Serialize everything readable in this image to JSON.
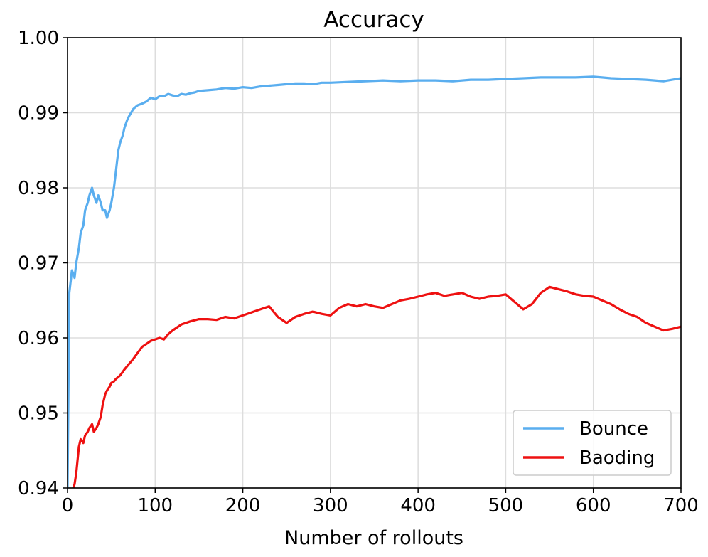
{
  "chart_data": {
    "type": "line",
    "title": "Accuracy",
    "xlabel": "Number of rollouts",
    "ylabel": "",
    "xlim": [
      0,
      700
    ],
    "ylim": [
      0.94,
      1.0
    ],
    "grid": true,
    "legend_position": "bottom-right",
    "x_ticks": [
      "0",
      "100",
      "200",
      "300",
      "400",
      "500",
      "600",
      "700"
    ],
    "y_ticks": [
      "0.94",
      "0.95",
      "0.96",
      "0.97",
      "0.98",
      "0.99",
      "1.00"
    ],
    "series": [
      {
        "name": "Bounce",
        "color": "#5aaeef",
        "x": [
          0,
          2,
          5,
          8,
          10,
          13,
          15,
          18,
          20,
          23,
          25,
          28,
          30,
          33,
          35,
          38,
          40,
          43,
          45,
          48,
          50,
          53,
          55,
          58,
          60,
          63,
          65,
          68,
          70,
          75,
          80,
          85,
          90,
          95,
          100,
          105,
          110,
          115,
          120,
          125,
          130,
          135,
          140,
          145,
          150,
          160,
          170,
          180,
          190,
          200,
          210,
          220,
          230,
          240,
          250,
          260,
          270,
          280,
          290,
          300,
          320,
          340,
          360,
          380,
          400,
          420,
          440,
          460,
          480,
          500,
          520,
          540,
          560,
          580,
          600,
          610,
          620,
          640,
          660,
          670,
          680,
          690,
          700
        ],
        "values": [
          0.94,
          0.966,
          0.969,
          0.968,
          0.97,
          0.972,
          0.974,
          0.975,
          0.977,
          0.978,
          0.979,
          0.98,
          0.979,
          0.978,
          0.979,
          0.978,
          0.977,
          0.977,
          0.976,
          0.977,
          0.978,
          0.98,
          0.982,
          0.985,
          0.986,
          0.987,
          0.988,
          0.989,
          0.9895,
          0.9905,
          0.991,
          0.9912,
          0.9915,
          0.992,
          0.9918,
          0.9922,
          0.9922,
          0.9925,
          0.9923,
          0.9922,
          0.9925,
          0.9924,
          0.9926,
          0.9927,
          0.9929,
          0.993,
          0.9931,
          0.9933,
          0.9932,
          0.9934,
          0.9933,
          0.9935,
          0.9936,
          0.9937,
          0.9938,
          0.9939,
          0.9939,
          0.9938,
          0.994,
          0.994,
          0.9941,
          0.9942,
          0.9943,
          0.9942,
          0.9943,
          0.9943,
          0.9942,
          0.9944,
          0.9944,
          0.9945,
          0.9946,
          0.9947,
          0.9947,
          0.9947,
          0.9948,
          0.9947,
          0.9946,
          0.9945,
          0.9944,
          0.9943,
          0.9942,
          0.9944,
          0.9946
        ]
      },
      {
        "name": "Baoding",
        "color": "#ee1111",
        "x": [
          5,
          8,
          10,
          13,
          15,
          18,
          20,
          23,
          25,
          28,
          30,
          33,
          35,
          38,
          40,
          43,
          45,
          48,
          50,
          53,
          55,
          58,
          60,
          65,
          70,
          75,
          80,
          85,
          90,
          95,
          100,
          105,
          110,
          115,
          120,
          130,
          140,
          150,
          160,
          170,
          180,
          190,
          200,
          210,
          220,
          230,
          240,
          250,
          260,
          270,
          280,
          290,
          300,
          310,
          320,
          330,
          340,
          350,
          360,
          370,
          380,
          390,
          400,
          410,
          420,
          430,
          440,
          450,
          460,
          470,
          480,
          490,
          500,
          510,
          520,
          530,
          540,
          550,
          560,
          570,
          580,
          590,
          600,
          610,
          620,
          630,
          640,
          650,
          660,
          670,
          680,
          690,
          700
        ],
        "values": [
          0.9395,
          0.9405,
          0.942,
          0.9455,
          0.9465,
          0.946,
          0.947,
          0.9475,
          0.948,
          0.9485,
          0.9475,
          0.948,
          0.9485,
          0.9495,
          0.951,
          0.9525,
          0.953,
          0.9535,
          0.954,
          0.9542,
          0.9545,
          0.9548,
          0.955,
          0.9558,
          0.9565,
          0.9572,
          0.958,
          0.9588,
          0.9592,
          0.9596,
          0.9598,
          0.96,
          0.9598,
          0.9605,
          0.961,
          0.9618,
          0.9622,
          0.9625,
          0.9625,
          0.9624,
          0.9628,
          0.9626,
          0.963,
          0.9634,
          0.9638,
          0.9642,
          0.9628,
          0.962,
          0.9628,
          0.9632,
          0.9635,
          0.9632,
          0.963,
          0.964,
          0.9645,
          0.9642,
          0.9645,
          0.9642,
          0.964,
          0.9645,
          0.965,
          0.9652,
          0.9655,
          0.9658,
          0.966,
          0.9656,
          0.9658,
          0.966,
          0.9655,
          0.9652,
          0.9655,
          0.9656,
          0.9658,
          0.9648,
          0.9638,
          0.9645,
          0.966,
          0.9668,
          0.9665,
          0.9662,
          0.9658,
          0.9656,
          0.9655,
          0.965,
          0.9645,
          0.9638,
          0.9632,
          0.9628,
          0.962,
          0.9615,
          0.961,
          0.9612,
          0.9615
        ]
      }
    ]
  }
}
